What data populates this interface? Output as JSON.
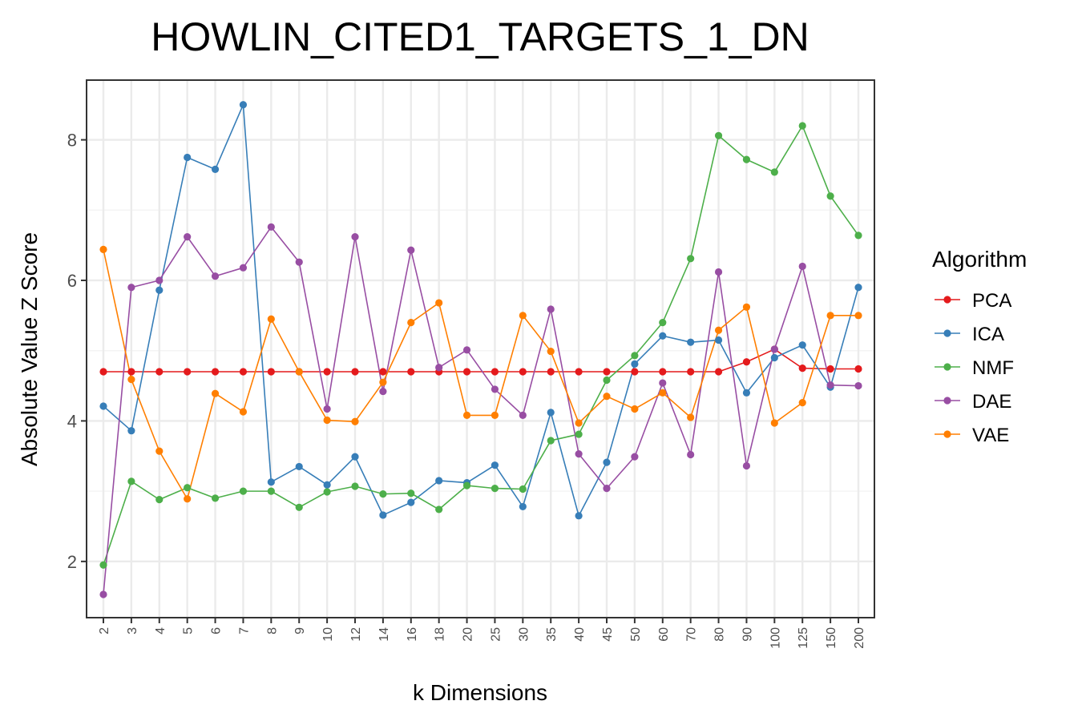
{
  "chart_data": {
    "type": "line",
    "title": "HOWLIN_CITED1_TARGETS_1_DN",
    "xlabel": "k Dimensions",
    "ylabel": "Absolute Value Z Score",
    "x": [
      "2",
      "3",
      "4",
      "5",
      "6",
      "7",
      "8",
      "9",
      "10",
      "12",
      "14",
      "16",
      "18",
      "20",
      "25",
      "30",
      "35",
      "40",
      "45",
      "50",
      "60",
      "70",
      "80",
      "90",
      "100",
      "125",
      "150",
      "200"
    ],
    "x_scale": "categorical",
    "ylim": [
      1.2,
      8.85
    ],
    "yticks": [
      2,
      4,
      6,
      8
    ],
    "ytick_labels": [
      "2",
      "4",
      "6",
      "8"
    ],
    "grid": true,
    "legend": {
      "title": "Algorithm",
      "placement": "right"
    },
    "series": [
      {
        "name": "PCA",
        "color": "#e41a1c",
        "values": [
          4.7,
          4.7,
          4.7,
          4.7,
          4.7,
          4.7,
          4.7,
          4.7,
          4.7,
          4.7,
          4.7,
          4.7,
          4.7,
          4.7,
          4.7,
          4.7,
          4.7,
          4.7,
          4.7,
          4.7,
          4.7,
          4.7,
          4.7,
          4.84,
          5.02,
          4.75,
          4.74,
          4.74
        ]
      },
      {
        "name": "ICA",
        "color": "#377eb8",
        "values": [
          4.21,
          3.86,
          5.86,
          7.75,
          7.58,
          8.5,
          3.13,
          3.35,
          3.09,
          3.49,
          2.66,
          2.84,
          3.15,
          3.12,
          3.37,
          2.78,
          4.12,
          2.65,
          3.41,
          4.81,
          5.21,
          5.12,
          5.15,
          4.4,
          4.9,
          5.08,
          4.48,
          5.9
        ]
      },
      {
        "name": "NMF",
        "color": "#4daf4a",
        "values": [
          1.95,
          3.14,
          2.88,
          3.05,
          2.9,
          3.0,
          3.0,
          2.77,
          2.99,
          3.07,
          2.96,
          2.97,
          2.74,
          3.08,
          3.04,
          3.03,
          3.72,
          3.81,
          4.58,
          4.93,
          5.4,
          6.31,
          8.06,
          7.72,
          7.54,
          8.2,
          7.2,
          6.64
        ]
      },
      {
        "name": "DAE",
        "color": "#984ea3",
        "values": [
          1.53,
          5.9,
          6.0,
          6.62,
          6.06,
          6.18,
          6.76,
          6.26,
          4.17,
          6.62,
          4.42,
          6.43,
          4.76,
          5.01,
          4.45,
          4.08,
          5.59,
          3.53,
          3.04,
          3.49,
          4.54,
          3.52,
          6.12,
          3.36,
          5.02,
          6.2,
          4.51,
          4.5
        ]
      },
      {
        "name": "VAE",
        "color": "#ff7f00",
        "values": [
          6.44,
          4.59,
          3.57,
          2.89,
          4.39,
          4.13,
          5.45,
          4.7,
          4.01,
          3.99,
          4.55,
          5.4,
          5.68,
          4.08,
          4.08,
          5.5,
          4.99,
          3.97,
          4.35,
          4.17,
          4.4,
          4.05,
          5.29,
          5.62,
          3.97,
          4.26,
          5.5,
          5.5
        ]
      }
    ]
  }
}
